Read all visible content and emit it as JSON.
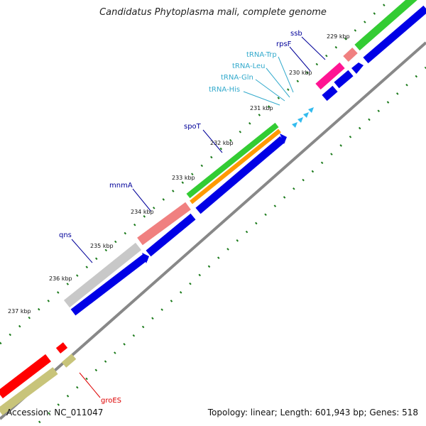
{
  "title": "Candidatus Phytoplasma mali, complete genome",
  "footer": {
    "accession": "Accession: NC_011047",
    "topology": "Topology: linear; Length: 601,943 bp; Genes: 518"
  },
  "ticks": [
    "229 kbp",
    "230 kbp",
    "231 kbp",
    "232 kbp",
    "233 kbp",
    "234 kbp",
    "235 kbp",
    "236 kbp",
    "237 kbp"
  ],
  "labels": {
    "ssb": "ssb",
    "rpsF": "rpsF",
    "trna_trp": "tRNA-Trp",
    "trna_leu": "tRNA-Leu",
    "trna_gln": "tRNA-Gln",
    "trna_his": "tRNA-His",
    "spoT": "spoT",
    "mnmA": "mnmA",
    "qns": "qns",
    "groES": "groES"
  },
  "colors": {
    "cds_blue": "#0000e6",
    "green": "#33cc33",
    "orange": "#ff9900",
    "pink": "#f08080",
    "magenta": "#ff1493",
    "grey": "#c8c8c8",
    "red": "#ff0000",
    "olive": "#c8c47a",
    "trna": "#33bbee",
    "label_blue": "#000099",
    "label_cyan": "#33aacc",
    "label_red": "#dd0000",
    "backbone": "#888888",
    "gc_dots": "#1a7a1a"
  }
}
